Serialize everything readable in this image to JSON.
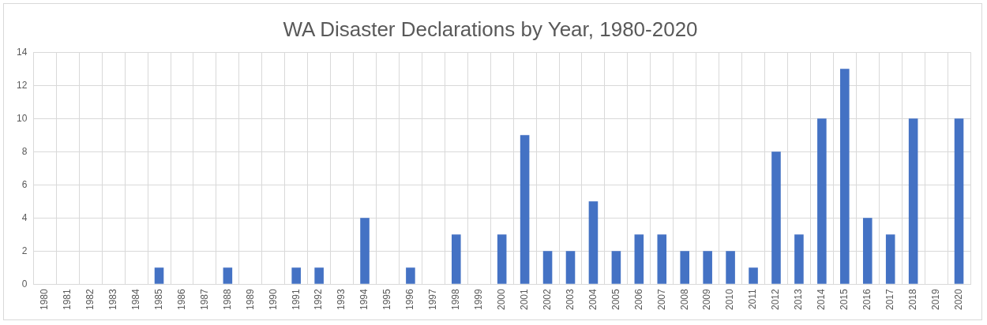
{
  "chart_data": {
    "type": "bar",
    "title": "WA Disaster Declarations by Year, 1980-2020",
    "categories": [
      "1980",
      "1981",
      "1982",
      "1983",
      "1984",
      "1985",
      "1986",
      "1987",
      "1988",
      "1989",
      "1990",
      "1991",
      "1992",
      "1993",
      "1994",
      "1995",
      "1996",
      "1997",
      "1998",
      "1999",
      "2000",
      "2001",
      "2002",
      "2003",
      "2004",
      "2005",
      "2006",
      "2007",
      "2008",
      "2009",
      "2010",
      "2011",
      "2012",
      "2013",
      "2014",
      "2015",
      "2016",
      "2017",
      "2018",
      "2019",
      "2020"
    ],
    "values": [
      0,
      0,
      0,
      0,
      0,
      1,
      0,
      0,
      1,
      0,
      0,
      1,
      1,
      0,
      4,
      0,
      1,
      0,
      3,
      0,
      3,
      9,
      2,
      2,
      5,
      2,
      3,
      3,
      2,
      2,
      2,
      1,
      8,
      3,
      10,
      13,
      4,
      3,
      10,
      0,
      10
    ],
    "color": "#4472c4",
    "ylim": [
      0,
      14
    ],
    "yticks": [
      0,
      2,
      4,
      6,
      8,
      10,
      12,
      14
    ],
    "grid": true,
    "legend": false
  }
}
